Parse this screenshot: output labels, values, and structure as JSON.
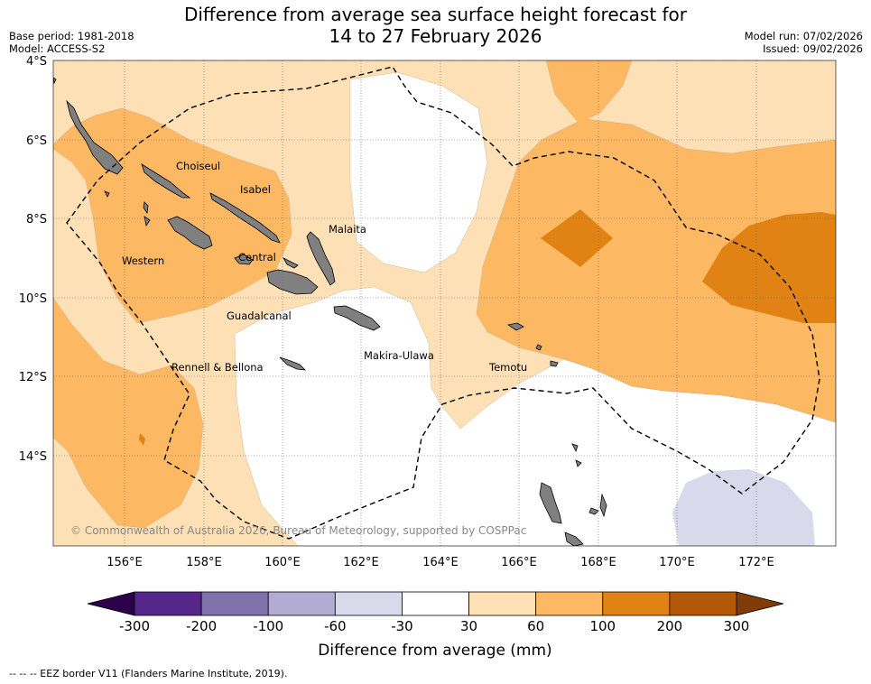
{
  "header": {
    "title_line1": "Difference from average sea surface height forecast for",
    "title_line2": "14 to 27 February 2026",
    "base_period": "Base period: 1981-2018",
    "model": "Model: ACCESS-S2",
    "model_run": "Model run: 07/02/2026",
    "issued": "Issued: 09/02/2026"
  },
  "map": {
    "lat_labels": [
      "4°S",
      "6°S",
      "8°S",
      "10°S",
      "12°S",
      "14°S"
    ],
    "lon_labels": [
      "156°E",
      "158°E",
      "160°E",
      "162°E",
      "164°E",
      "166°E",
      "168°E",
      "170°E",
      "172°E"
    ],
    "place_labels": {
      "choiseul": "Choiseul",
      "isabel": "Isabel",
      "malaita": "Malaita",
      "western": "Western",
      "central": "Central",
      "guadalcanal": "Guadalcanal",
      "makira": "Makira-Ulawa",
      "rennell": "Rennell & Bellona",
      "temotu": "Temotu"
    },
    "credit": "© Commonwealth of Australia 2026, Bureau of Meteorology, supported by COSPPac"
  },
  "colorbar": {
    "ticks": [
      "-300",
      "-200",
      "-100",
      "-60",
      "-30",
      "30",
      "60",
      "100",
      "200",
      "300"
    ],
    "colors": [
      "#542788",
      "#8073ac",
      "#b2abd2",
      "#d8daeb",
      "#ffffff",
      "#fee0b6",
      "#fdb863",
      "#e08214",
      "#b35806"
    ],
    "extend_low_color": "#2d004b",
    "extend_high_color": "#7f3b08",
    "title": "Difference from average (mm)"
  },
  "footer": {
    "legend": "--  --  -- EEZ border V11 (Flanders Marine Institute, 2019)."
  }
}
